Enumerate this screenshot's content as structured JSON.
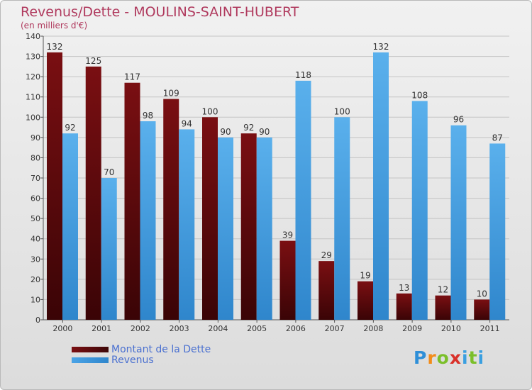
{
  "title": "Revenus/Dette - MOULINS-SAINT-HUBERT",
  "subtitle": "(en milliers d'€)",
  "logo": {
    "letters": [
      "P",
      "r",
      "o",
      "x",
      "i",
      "t",
      "i"
    ],
    "colors": [
      "#2f8fd8",
      "#f28c1a",
      "#7bbf2a",
      "#d9312a",
      "#3a9fe0",
      "#7bbf2a",
      "#3a9fe0"
    ]
  },
  "legend": {
    "dette_label": "Montant de la Dette",
    "revenus_label": "Revenus"
  },
  "colors": {
    "dette": "#7a0f12",
    "revenus": "#4aa3e6",
    "title": "#b03a5e",
    "legend_text": "#4a70d0"
  },
  "chart_data": {
    "type": "bar",
    "title": "Revenus/Dette - MOULINS-SAINT-HUBERT",
    "subtitle": "(en milliers d'€)",
    "categories": [
      "2000",
      "2001",
      "2002",
      "2003",
      "2004",
      "2005",
      "2006",
      "2007",
      "2008",
      "2009",
      "2010",
      "2011"
    ],
    "series": [
      {
        "name": "Montant de la Dette",
        "values": [
          132,
          125,
          117,
          109,
          100,
          92,
          39,
          29,
          19,
          13,
          12,
          10
        ]
      },
      {
        "name": "Revenus",
        "values": [
          92,
          70,
          98,
          94,
          90,
          90,
          118,
          100,
          132,
          108,
          96,
          87
        ]
      }
    ],
    "ylim": [
      0,
      140
    ],
    "yticks": [
      0,
      10,
      20,
      30,
      40,
      50,
      60,
      70,
      80,
      90,
      100,
      110,
      120,
      130,
      140
    ],
    "grid": true,
    "legend_position": "bottom-left"
  }
}
